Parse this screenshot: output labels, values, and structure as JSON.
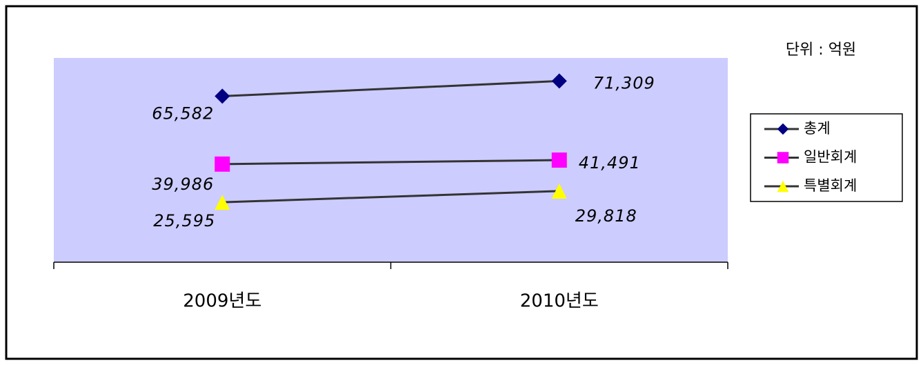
{
  "chart_data": {
    "type": "line",
    "unit_label": "단위 : 억원",
    "categories": [
      "2009년도",
      "2010년도"
    ],
    "ylim": [
      3000,
      80000
    ],
    "background": "#ccccff",
    "line_color": "#333333",
    "series": [
      {
        "name": "총계",
        "color": "#000080",
        "marker": "diamond",
        "values": [
          65582,
          71309
        ],
        "value_labels": [
          "65,582",
          "71,309"
        ]
      },
      {
        "name": "일반회계",
        "color": "#ff00ff",
        "marker": "square",
        "values": [
          39986,
          41491
        ],
        "value_labels": [
          "39,986",
          "41,491"
        ]
      },
      {
        "name": "특별회계",
        "color": "#ffff00",
        "marker": "triangle",
        "values": [
          25595,
          29818
        ],
        "value_labels": [
          "25,595",
          "29,818"
        ]
      }
    ]
  }
}
